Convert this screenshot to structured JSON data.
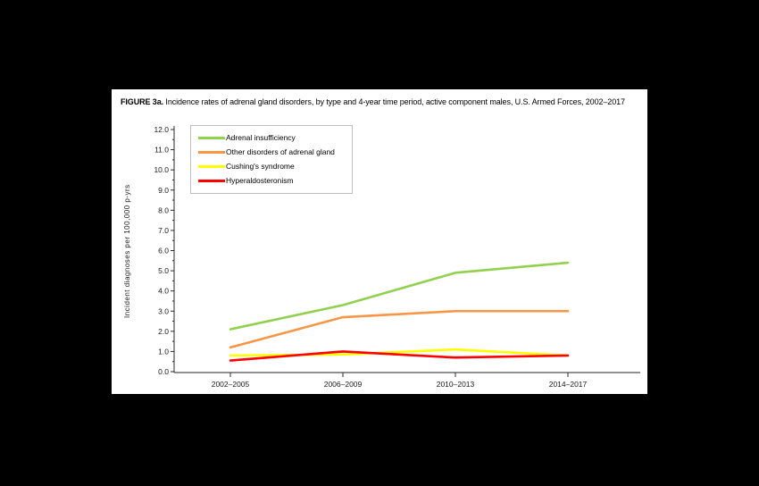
{
  "figure": {
    "title_label": "FIGURE 3a.",
    "title_text": "Incidence rates of adrenal gland disorders, by type and 4-year time period, active component males, U.S. Armed Forces, 2002–2017"
  },
  "chart_data": {
    "type": "line",
    "categories": [
      "2002–2005",
      "2006–2009",
      "2010–2013",
      "2014–2017"
    ],
    "series": [
      {
        "name": "Adrenal insufficiency",
        "color": "#92D050",
        "values": [
          2.1,
          3.3,
          4.9,
          5.4
        ]
      },
      {
        "name": "Other disorders of adrenal gland",
        "color": "#F79646",
        "values": [
          1.2,
          2.7,
          3.0,
          3.0
        ]
      },
      {
        "name": "Cushing's syndrome",
        "color": "#FFFF00",
        "values": [
          0.8,
          0.85,
          1.1,
          0.8
        ]
      },
      {
        "name": "Hyperaldosteronism",
        "color": "#FF0000",
        "values": [
          0.55,
          1.0,
          0.7,
          0.8
        ]
      }
    ],
    "title": "",
    "xlabel": "",
    "ylabel": "Incident diagnoses per 100,000 p-yrs",
    "ylim": [
      0,
      12
    ],
    "ytick_step": 1.0,
    "ytick_decimals": 1,
    "yminor_step": 0.5,
    "grid": false,
    "legend_position": "upper-left-inside"
  },
  "colors": {
    "page_background": "#000000",
    "panel_background": "#FFFFFF",
    "x_axis_line": "#6b6b6b",
    "y_axis_line": "#2b2b2b",
    "tick_mark": "#2b2b2b",
    "tick_text": "#1a1a1a",
    "legend_border": "#bfbfbf"
  }
}
